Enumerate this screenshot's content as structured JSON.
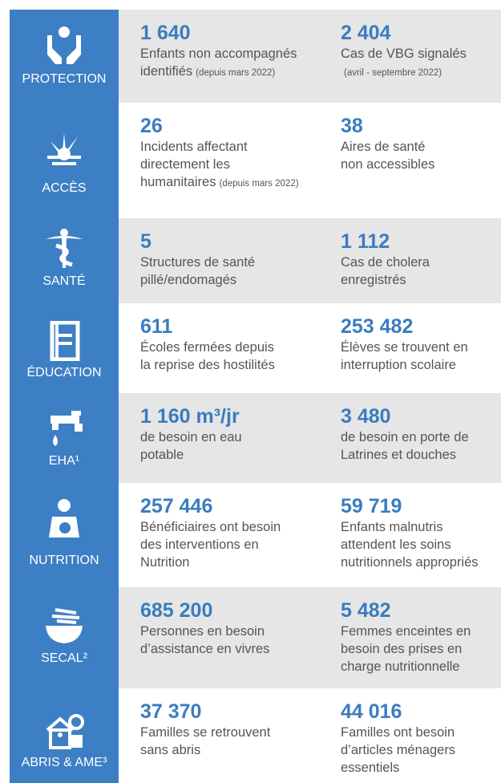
{
  "rows": [
    {
      "sector": "PROTECTION",
      "stats": [
        {
          "value": "1 640",
          "lines": [
            "Enfants non accompagnés",
            "identifiés"
          ],
          "note": "(depuis mars 2022)"
        },
        {
          "value": "2 404",
          "lines": [
            "Cas de VBG signalés"
          ],
          "note": "(avril - septembre 2022)"
        }
      ]
    },
    {
      "sector": "ACCÈS",
      "stats": [
        {
          "value": "26",
          "lines": [
            "Incidents affectant",
            "directement les",
            "humanitaires"
          ],
          "note": "(depuis mars 2022)"
        },
        {
          "value": "38",
          "lines": [
            "Aires de santé",
            "non accessibles"
          ]
        }
      ]
    },
    {
      "sector": "SANTÉ",
      "stats": [
        {
          "value": "5",
          "lines": [
            "Structures de santé",
            "pillé/endomagés"
          ]
        },
        {
          "value": "1 112",
          "lines": [
            "Cas de cholera",
            "enregistrés"
          ]
        }
      ]
    },
    {
      "sector": "ÉDUCATION",
      "stats": [
        {
          "value": "611",
          "lines": [
            "Écoles fermées depuis",
            "la reprise des hostilités"
          ]
        },
        {
          "value": "253 482",
          "lines": [
            "Élèves se trouvent en",
            "interruption scolaire"
          ]
        }
      ]
    },
    {
      "sector": "EHA¹",
      "stats": [
        {
          "value": "1 160 m³/jr",
          "lines": [
            "de besoin en eau",
            "potable"
          ]
        },
        {
          "value": "3 480",
          "lines": [
            "de besoin en porte de",
            "Latrines et douches"
          ]
        }
      ]
    },
    {
      "sector": "NUTRITION",
      "stats": [
        {
          "value": "257 446",
          "lines": [
            "Bénéficiaires ont besoin",
            "des interventions en",
            "Nutrition"
          ]
        },
        {
          "value": "59 719",
          "lines": [
            "Enfants malnutris",
            "attendent les soins",
            "nutritionnels appropriés"
          ]
        }
      ]
    },
    {
      "sector": "SECAL²",
      "stats": [
        {
          "value": "685 200",
          "lines": [
            "Personnes en besoin",
            "d’assistance en vivres"
          ]
        },
        {
          "value": "5 482",
          "lines": [
            "Femmes enceintes en",
            "besoin des prises en",
            "charge nutritionnelle"
          ]
        }
      ]
    },
    {
      "sector": "ABRIS & AME³",
      "stats": [
        {
          "value": "37 370",
          "lines": [
            "Familles se retrouvent",
            "sans abris"
          ]
        },
        {
          "value": "44 016",
          "lines": [
            "Familles ont besoin",
            "d’articles ménagers",
            "essentiels"
          ]
        }
      ]
    }
  ]
}
